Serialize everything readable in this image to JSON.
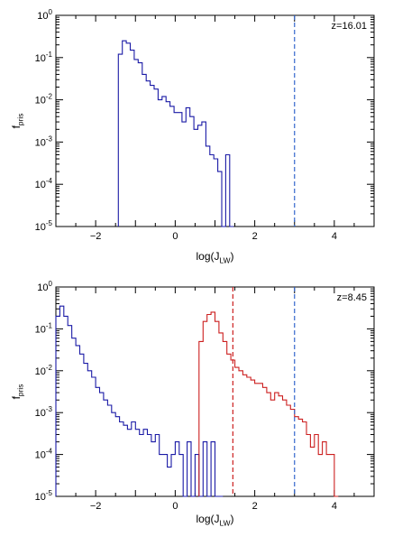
{
  "chart_data": [
    {
      "type": "line",
      "annotation": "z=16.01",
      "title": "",
      "xlabel": "log(J_LW)",
      "ylabel": "f_pris",
      "xlim": [
        -3,
        5
      ],
      "ylim": [
        1e-05,
        1
      ],
      "yscale": "log",
      "x_ticks": [
        "-2",
        "0",
        "2",
        "4"
      ],
      "y_ticks": [
        "10^-5",
        "10^-4",
        "10^-3",
        "10^-2",
        "10^-1",
        "10^0"
      ],
      "vlines": [
        {
          "x": 3.0,
          "color": "#3366cc",
          "style": "dashed"
        }
      ],
      "series": [
        {
          "color": "#1a1aa6",
          "step": true,
          "x": [
            -1.38,
            -1.28,
            -1.18,
            -1.08,
            -0.98,
            -0.88,
            -0.78,
            -0.68,
            -0.58,
            -0.48,
            -0.38,
            -0.28,
            -0.18,
            -0.08,
            0.02,
            0.12,
            0.22,
            0.32,
            0.42,
            0.52,
            0.62,
            0.72,
            0.82,
            0.92,
            1.02,
            1.12,
            1.22,
            1.32,
            1.42
          ],
          "y": [
            0.12,
            0.25,
            0.22,
            0.15,
            0.09,
            0.075,
            0.04,
            0.028,
            0.022,
            0.018,
            0.01,
            0.012,
            0.009,
            0.007,
            0.005,
            0.005,
            0.003,
            0.0065,
            0.004,
            0.002,
            0.0025,
            0.003,
            0.0008,
            0.0005,
            0.0004,
            0.0002,
            1e-05,
            0.0005,
            1e-05
          ]
        }
      ]
    },
    {
      "type": "line",
      "annotation": "z=8.45",
      "title": "",
      "xlabel": "log(J_LW)",
      "ylabel": "f_pris",
      "xlim": [
        -3,
        5
      ],
      "ylim": [
        1e-05,
        1
      ],
      "yscale": "log",
      "x_ticks": [
        "-2",
        "0",
        "2",
        "4"
      ],
      "y_ticks": [
        "10^-5",
        "10^-4",
        "10^-3",
        "10^-2",
        "10^-1",
        "10^0"
      ],
      "vlines": [
        {
          "x": 3.0,
          "color": "#3366cc",
          "style": "dashed"
        },
        {
          "x": 1.45,
          "color": "#cc1f1f",
          "style": "dashed"
        }
      ],
      "series": [
        {
          "color": "#1a1aa6",
          "step": true,
          "x": [
            -2.95,
            -2.85,
            -2.75,
            -2.65,
            -2.55,
            -2.45,
            -2.35,
            -2.25,
            -2.15,
            -2.05,
            -1.95,
            -1.85,
            -1.75,
            -1.65,
            -1.55,
            -1.45,
            -1.35,
            -1.25,
            -1.15,
            -1.05,
            -0.95,
            -0.85,
            -0.75,
            -0.65,
            -0.55,
            -0.45,
            -0.35,
            -0.25,
            -0.15,
            -0.05,
            0.05,
            0.15,
            0.25,
            0.35,
            0.45,
            0.55,
            0.65,
            0.75,
            0.85,
            0.95,
            1.05,
            1.15
          ],
          "y": [
            0.2,
            0.35,
            0.2,
            0.12,
            0.06,
            0.04,
            0.025,
            0.015,
            0.01,
            0.007,
            0.004,
            0.003,
            0.002,
            0.0015,
            0.001,
            0.0008,
            0.0006,
            0.0005,
            0.0004,
            0.0006,
            0.0004,
            0.0003,
            0.0004,
            0.0003,
            0.0002,
            0.0003,
            0.0001,
            0.0001,
            5e-05,
            0.0001,
            0.0002,
            0.0001,
            1e-05,
            0.0002,
            1e-05,
            0.0001,
            1e-05,
            0.0002,
            1e-05,
            0.0002,
            1e-05,
            1e-05
          ]
        },
        {
          "color": "#cc1f1f",
          "step": true,
          "x": [
            0.65,
            0.75,
            0.85,
            0.95,
            1.05,
            1.15,
            1.25,
            1.35,
            1.45,
            1.55,
            1.65,
            1.75,
            1.85,
            1.95,
            2.05,
            2.15,
            2.25,
            2.35,
            2.45,
            2.55,
            2.65,
            2.75,
            2.85,
            2.95,
            3.05,
            3.15,
            3.25,
            3.35,
            3.45,
            3.55,
            3.65,
            3.75,
            3.85,
            3.95,
            4.05
          ],
          "y": [
            0.05,
            0.15,
            0.22,
            0.25,
            0.15,
            0.08,
            0.05,
            0.025,
            0.018,
            0.012,
            0.01,
            0.008,
            0.007,
            0.006,
            0.005,
            0.005,
            0.004,
            0.003,
            0.002,
            0.003,
            0.0025,
            0.002,
            0.0015,
            0.0012,
            0.0008,
            0.0007,
            0.0006,
            0.0003,
            0.00015,
            0.0003,
            0.0001,
            0.0002,
            0.0001,
            0.0001,
            1e-05
          ]
        }
      ]
    }
  ]
}
